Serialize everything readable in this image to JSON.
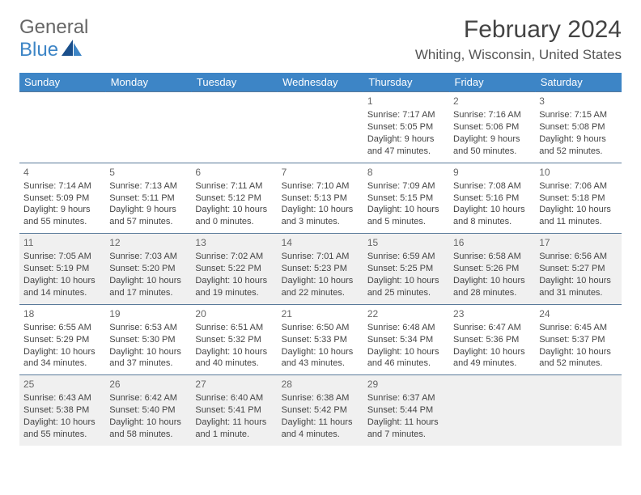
{
  "brand": {
    "top": "General",
    "bottom": "Blue"
  },
  "title": "February 2024",
  "location": "Whiting, Wisconsin, United States",
  "colors": {
    "header_bg": "#3d85c6",
    "header_text": "#ffffff",
    "cell_border": "#5a7a9a",
    "shade_bg": "#f0f0f0",
    "text": "#444444"
  },
  "weekdays": [
    "Sunday",
    "Monday",
    "Tuesday",
    "Wednesday",
    "Thursday",
    "Friday",
    "Saturday"
  ],
  "weeks": [
    {
      "shade": false,
      "days": [
        null,
        null,
        null,
        null,
        {
          "n": "1",
          "lines": [
            "Sunrise: 7:17 AM",
            "Sunset: 5:05 PM",
            "Daylight: 9 hours",
            "and 47 minutes."
          ]
        },
        {
          "n": "2",
          "lines": [
            "Sunrise: 7:16 AM",
            "Sunset: 5:06 PM",
            "Daylight: 9 hours",
            "and 50 minutes."
          ]
        },
        {
          "n": "3",
          "lines": [
            "Sunrise: 7:15 AM",
            "Sunset: 5:08 PM",
            "Daylight: 9 hours",
            "and 52 minutes."
          ]
        }
      ]
    },
    {
      "shade": false,
      "days": [
        {
          "n": "4",
          "lines": [
            "Sunrise: 7:14 AM",
            "Sunset: 5:09 PM",
            "Daylight: 9 hours",
            "and 55 minutes."
          ]
        },
        {
          "n": "5",
          "lines": [
            "Sunrise: 7:13 AM",
            "Sunset: 5:11 PM",
            "Daylight: 9 hours",
            "and 57 minutes."
          ]
        },
        {
          "n": "6",
          "lines": [
            "Sunrise: 7:11 AM",
            "Sunset: 5:12 PM",
            "Daylight: 10 hours",
            "and 0 minutes."
          ]
        },
        {
          "n": "7",
          "lines": [
            "Sunrise: 7:10 AM",
            "Sunset: 5:13 PM",
            "Daylight: 10 hours",
            "and 3 minutes."
          ]
        },
        {
          "n": "8",
          "lines": [
            "Sunrise: 7:09 AM",
            "Sunset: 5:15 PM",
            "Daylight: 10 hours",
            "and 5 minutes."
          ]
        },
        {
          "n": "9",
          "lines": [
            "Sunrise: 7:08 AM",
            "Sunset: 5:16 PM",
            "Daylight: 10 hours",
            "and 8 minutes."
          ]
        },
        {
          "n": "10",
          "lines": [
            "Sunrise: 7:06 AM",
            "Sunset: 5:18 PM",
            "Daylight: 10 hours",
            "and 11 minutes."
          ]
        }
      ]
    },
    {
      "shade": true,
      "days": [
        {
          "n": "11",
          "lines": [
            "Sunrise: 7:05 AM",
            "Sunset: 5:19 PM",
            "Daylight: 10 hours",
            "and 14 minutes."
          ]
        },
        {
          "n": "12",
          "lines": [
            "Sunrise: 7:03 AM",
            "Sunset: 5:20 PM",
            "Daylight: 10 hours",
            "and 17 minutes."
          ]
        },
        {
          "n": "13",
          "lines": [
            "Sunrise: 7:02 AM",
            "Sunset: 5:22 PM",
            "Daylight: 10 hours",
            "and 19 minutes."
          ]
        },
        {
          "n": "14",
          "lines": [
            "Sunrise: 7:01 AM",
            "Sunset: 5:23 PM",
            "Daylight: 10 hours",
            "and 22 minutes."
          ]
        },
        {
          "n": "15",
          "lines": [
            "Sunrise: 6:59 AM",
            "Sunset: 5:25 PM",
            "Daylight: 10 hours",
            "and 25 minutes."
          ]
        },
        {
          "n": "16",
          "lines": [
            "Sunrise: 6:58 AM",
            "Sunset: 5:26 PM",
            "Daylight: 10 hours",
            "and 28 minutes."
          ]
        },
        {
          "n": "17",
          "lines": [
            "Sunrise: 6:56 AM",
            "Sunset: 5:27 PM",
            "Daylight: 10 hours",
            "and 31 minutes."
          ]
        }
      ]
    },
    {
      "shade": false,
      "days": [
        {
          "n": "18",
          "lines": [
            "Sunrise: 6:55 AM",
            "Sunset: 5:29 PM",
            "Daylight: 10 hours",
            "and 34 minutes."
          ]
        },
        {
          "n": "19",
          "lines": [
            "Sunrise: 6:53 AM",
            "Sunset: 5:30 PM",
            "Daylight: 10 hours",
            "and 37 minutes."
          ]
        },
        {
          "n": "20",
          "lines": [
            "Sunrise: 6:51 AM",
            "Sunset: 5:32 PM",
            "Daylight: 10 hours",
            "and 40 minutes."
          ]
        },
        {
          "n": "21",
          "lines": [
            "Sunrise: 6:50 AM",
            "Sunset: 5:33 PM",
            "Daylight: 10 hours",
            "and 43 minutes."
          ]
        },
        {
          "n": "22",
          "lines": [
            "Sunrise: 6:48 AM",
            "Sunset: 5:34 PM",
            "Daylight: 10 hours",
            "and 46 minutes."
          ]
        },
        {
          "n": "23",
          "lines": [
            "Sunrise: 6:47 AM",
            "Sunset: 5:36 PM",
            "Daylight: 10 hours",
            "and 49 minutes."
          ]
        },
        {
          "n": "24",
          "lines": [
            "Sunrise: 6:45 AM",
            "Sunset: 5:37 PM",
            "Daylight: 10 hours",
            "and 52 minutes."
          ]
        }
      ]
    },
    {
      "shade": true,
      "days": [
        {
          "n": "25",
          "lines": [
            "Sunrise: 6:43 AM",
            "Sunset: 5:38 PM",
            "Daylight: 10 hours",
            "and 55 minutes."
          ]
        },
        {
          "n": "26",
          "lines": [
            "Sunrise: 6:42 AM",
            "Sunset: 5:40 PM",
            "Daylight: 10 hours",
            "and 58 minutes."
          ]
        },
        {
          "n": "27",
          "lines": [
            "Sunrise: 6:40 AM",
            "Sunset: 5:41 PM",
            "Daylight: 11 hours",
            "and 1 minute."
          ]
        },
        {
          "n": "28",
          "lines": [
            "Sunrise: 6:38 AM",
            "Sunset: 5:42 PM",
            "Daylight: 11 hours",
            "and 4 minutes."
          ]
        },
        {
          "n": "29",
          "lines": [
            "Sunrise: 6:37 AM",
            "Sunset: 5:44 PM",
            "Daylight: 11 hours",
            "and 7 minutes."
          ]
        },
        null,
        null
      ]
    }
  ]
}
